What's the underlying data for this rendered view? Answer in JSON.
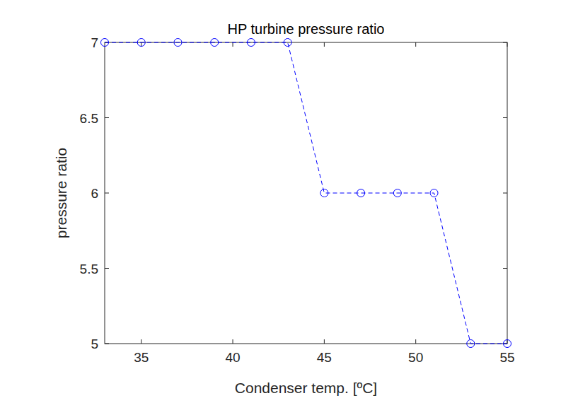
{
  "chart_data": {
    "type": "line",
    "title": "HP turbine pressure ratio",
    "x_label": "Condenser temp. [ºC]",
    "y_label": "pressure ratio",
    "x": [
      33,
      35,
      37,
      39,
      41,
      43,
      45,
      47,
      49,
      51,
      53,
      55
    ],
    "values": [
      7,
      7,
      7,
      7,
      7,
      7,
      6,
      6,
      6,
      6,
      5,
      5
    ],
    "color": "#0000ff",
    "marker": "circle",
    "line_style": "dashed",
    "xlim": [
      33,
      55
    ],
    "ylim": [
      5,
      7
    ],
    "xticks": [
      35,
      40,
      45,
      50,
      55
    ],
    "yticks": [
      5,
      5.5,
      6,
      6.5,
      7
    ],
    "grid": false
  }
}
